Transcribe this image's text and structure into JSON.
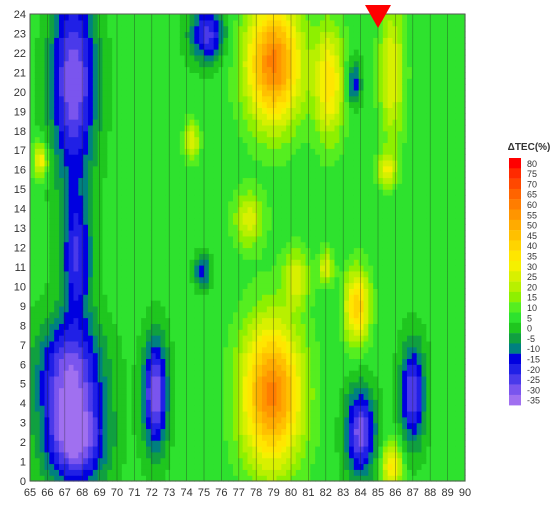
{
  "chart_data": {
    "type": "heatmap",
    "x": [
      65,
      66,
      67,
      68,
      69,
      70,
      71,
      72,
      73,
      74,
      75,
      76,
      77,
      78,
      79,
      80,
      81,
      82,
      83,
      84,
      85,
      86,
      87,
      88,
      89,
      90
    ],
    "y": [
      0,
      1,
      2,
      3,
      4,
      5,
      6,
      7,
      8,
      9,
      10,
      11,
      12,
      13,
      14,
      15,
      16,
      17,
      18,
      19,
      20,
      21,
      22,
      23,
      24
    ],
    "xlim": [
      65,
      90
    ],
    "ylim": [
      0,
      24
    ],
    "legend": {
      "title": "ΔTEC(%)",
      "levels": [
        80,
        75,
        70,
        65,
        60,
        55,
        50,
        45,
        40,
        35,
        30,
        25,
        20,
        15,
        10,
        5,
        0,
        -5,
        -10,
        -15,
        -20,
        -25,
        -30,
        -35
      ],
      "colors": [
        "#ff0000",
        "#ff2a00",
        "#ff4800",
        "#ff6400",
        "#ff7d00",
        "#ff9500",
        "#ffab00",
        "#ffc000",
        "#ffd400",
        "#ffe600",
        "#f5f000",
        "#d8f000",
        "#b8f000",
        "#8ef000",
        "#55ee20",
        "#2ee22e",
        "#1fc61f",
        "#10a040",
        "#008080",
        "#0000e0",
        "#2020e6",
        "#4a3aea",
        "#7a55ee",
        "#a070f0"
      ]
    },
    "marker": {
      "x": 85,
      "shape": "inverted-triangle",
      "color": "#ff0000"
    },
    "features": [
      {
        "label": "neg",
        "x": 67.5,
        "y": 20.5,
        "v": -30,
        "sx": 0.9,
        "sy": 3.5
      },
      {
        "label": "neg",
        "x": 67.3,
        "y": 5.5,
        "v": -28,
        "sx": 1.3,
        "sy": 2.0
      },
      {
        "label": "neg",
        "x": 67.6,
        "y": 2.0,
        "v": -30,
        "sx": 1.2,
        "sy": 1.6
      },
      {
        "label": "neg",
        "x": 67.7,
        "y": 11.5,
        "v": -20,
        "sx": 0.6,
        "sy": 2.2
      },
      {
        "label": "neg",
        "x": 72.2,
        "y": 4.5,
        "v": -30,
        "sx": 0.5,
        "sy": 2.0
      },
      {
        "label": "neg",
        "x": 75.2,
        "y": 23.0,
        "v": -22,
        "sx": 0.7,
        "sy": 1.0
      },
      {
        "label": "neg",
        "x": 74.9,
        "y": 10.8,
        "v": -15,
        "sx": 0.3,
        "sy": 0.6
      },
      {
        "label": "neg",
        "x": 84.0,
        "y": 2.5,
        "v": -28,
        "sx": 0.6,
        "sy": 1.6
      },
      {
        "label": "neg",
        "x": 87.0,
        "y": 4.5,
        "v": -25,
        "sx": 0.5,
        "sy": 1.8
      },
      {
        "label": "neg",
        "x": 83.6,
        "y": 20.5,
        "v": -15,
        "sx": 0.3,
        "sy": 0.8
      },
      {
        "label": "pos",
        "x": 79.0,
        "y": 21.5,
        "v": 62,
        "sx": 1.1,
        "sy": 2.2
      },
      {
        "label": "pos",
        "x": 78.9,
        "y": 4.5,
        "v": 62,
        "sx": 1.2,
        "sy": 2.6
      },
      {
        "label": "pos",
        "x": 83.8,
        "y": 9.0,
        "v": 45,
        "sx": 0.5,
        "sy": 1.3
      },
      {
        "label": "pos",
        "x": 82.2,
        "y": 20.5,
        "v": 38,
        "sx": 0.6,
        "sy": 2.0
      },
      {
        "label": "pos",
        "x": 85.8,
        "y": 21.0,
        "v": 30,
        "sx": 0.5,
        "sy": 2.5
      },
      {
        "label": "pos",
        "x": 85.8,
        "y": 0.8,
        "v": 38,
        "sx": 0.4,
        "sy": 0.8
      },
      {
        "label": "pos",
        "x": 80.3,
        "y": 10.5,
        "v": 28,
        "sx": 0.5,
        "sy": 1.0
      },
      {
        "label": "pos",
        "x": 77.6,
        "y": 13.5,
        "v": 28,
        "sx": 0.6,
        "sy": 1.0
      },
      {
        "label": "pos",
        "x": 74.3,
        "y": 17.5,
        "v": 30,
        "sx": 0.3,
        "sy": 0.7
      },
      {
        "label": "pos",
        "x": 65.6,
        "y": 16.5,
        "v": 35,
        "sx": 0.3,
        "sy": 0.6
      },
      {
        "label": "pos",
        "x": 85.5,
        "y": 16.0,
        "v": 30,
        "sx": 0.4,
        "sy": 0.6
      },
      {
        "label": "pos",
        "x": 82.0,
        "y": 11.0,
        "v": 30,
        "sx": 0.3,
        "sy": 0.6
      }
    ]
  }
}
